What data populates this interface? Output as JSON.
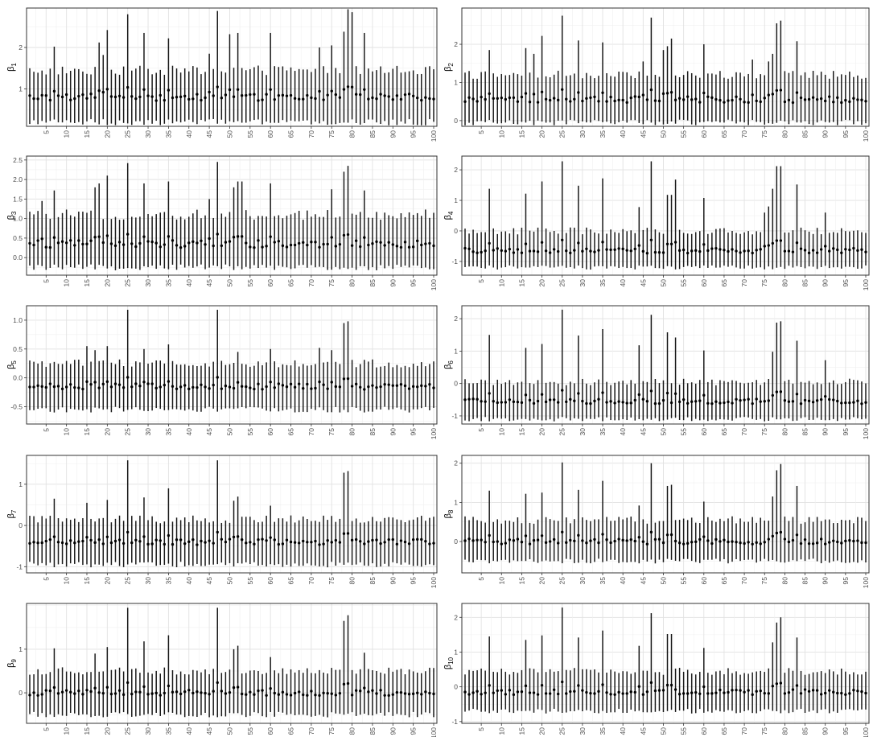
{
  "chart_data": [
    {
      "type": "scatter",
      "ylabel": "β",
      "ylabel_sub": "1",
      "x_ticks": [
        5,
        10,
        15,
        20,
        25,
        30,
        35,
        40,
        45,
        50,
        55,
        60,
        65,
        70,
        75,
        80,
        85,
        90,
        95,
        100
      ],
      "ylim": [
        0.1,
        2.95
      ],
      "y_ticks": [
        1,
        2
      ],
      "grid": true,
      "n_points": 100,
      "baseline": 0.8,
      "lo_offset": 0.6,
      "hi_offset": 0.65,
      "spikes": {
        "7": 2.02,
        "18": 2.12,
        "19": 1.82,
        "20": 2.42,
        "25": 2.8,
        "29": 2.35,
        "35": 2.22,
        "45": 1.85,
        "47": 2.88,
        "50": 2.32,
        "52": 2.35,
        "60": 2.35,
        "72": 2.0,
        "75": 2.05,
        "78": 2.38,
        "79": 2.92,
        "80": 2.85,
        "83": 2.35
      }
    },
    {
      "type": "scatter",
      "ylabel": "β",
      "ylabel_sub": "2",
      "x_ticks": [
        5,
        10,
        15,
        20,
        25,
        30,
        35,
        40,
        45,
        50,
        55,
        60,
        65,
        70,
        75,
        80,
        85,
        90,
        95,
        100
      ],
      "ylim": [
        -0.15,
        2.95
      ],
      "y_ticks": [
        0,
        1,
        2
      ],
      "grid": true,
      "n_points": 100,
      "baseline": 0.55,
      "lo_offset": 0.6,
      "hi_offset": 0.65,
      "spikes": {
        "7": 1.85,
        "16": 1.9,
        "18": 1.75,
        "20": 2.22,
        "25": 2.75,
        "29": 2.1,
        "35": 2.05,
        "45": 1.55,
        "47": 2.7,
        "50": 1.85,
        "51": 1.95,
        "52": 2.15,
        "60": 2.0,
        "72": 1.6,
        "76": 1.55,
        "77": 1.75,
        "78": 2.55,
        "79": 2.62,
        "83": 2.08
      }
    },
    {
      "type": "scatter",
      "ylabel": "β",
      "ylabel_sub": "3",
      "x_ticks": [
        5,
        10,
        15,
        20,
        25,
        30,
        35,
        40,
        45,
        50,
        55,
        60,
        65,
        70,
        75,
        80,
        85,
        90,
        95,
        100
      ],
      "ylim": [
        -0.45,
        2.6
      ],
      "y_ticks": [
        0.0,
        0.5,
        1.0,
        1.5,
        2.0,
        2.5
      ],
      "y_tick_labels": [
        "0.0",
        "0.5",
        "1.0",
        "1.5",
        "2.0",
        "2.5"
      ],
      "grid": true,
      "n_points": 100,
      "baseline": 0.35,
      "lo_offset": 0.6,
      "hi_offset": 0.75,
      "spikes": {
        "4": 1.45,
        "7": 1.72,
        "17": 1.8,
        "18": 1.9,
        "20": 2.1,
        "25": 2.42,
        "29": 1.9,
        "35": 1.95,
        "45": 1.5,
        "47": 2.45,
        "51": 1.8,
        "52": 1.95,
        "53": 1.95,
        "60": 1.9,
        "75": 1.75,
        "78": 2.2,
        "79": 2.35,
        "83": 1.72
      }
    },
    {
      "type": "scatter",
      "ylabel": "β",
      "ylabel_sub": "4",
      "x_ticks": [
        5,
        10,
        15,
        20,
        25,
        30,
        35,
        40,
        45,
        50,
        55,
        60,
        65,
        70,
        75,
        80,
        85,
        90,
        95,
        100
      ],
      "ylim": [
        -1.45,
        2.45
      ],
      "y_ticks": [
        -1,
        0,
        1,
        2
      ],
      "grid": true,
      "n_points": 100,
      "baseline": -0.65,
      "lo_offset": 0.55,
      "hi_offset": 0.65,
      "spikes": {
        "7": 1.38,
        "16": 1.22,
        "20": 1.62,
        "25": 2.28,
        "29": 1.48,
        "35": 1.72,
        "44": 0.78,
        "47": 2.28,
        "51": 1.18,
        "52": 1.18,
        "53": 1.68,
        "60": 1.08,
        "75": 0.6,
        "76": 0.8,
        "77": 1.38,
        "78": 2.12,
        "79": 2.12,
        "83": 1.52,
        "90": 0.6
      }
    },
    {
      "type": "scatter",
      "ylabel": "β",
      "ylabel_sub": "5",
      "x_ticks": [
        5,
        10,
        15,
        20,
        25,
        30,
        35,
        40,
        45,
        50,
        55,
        60,
        65,
        70,
        75,
        80,
        85,
        90,
        95,
        100
      ],
      "ylim": [
        -0.8,
        1.25
      ],
      "y_ticks": [
        -0.5,
        0.0,
        0.5,
        1.0
      ],
      "y_tick_labels": [
        "-0.5",
        "0.0",
        "0.5",
        "1.0"
      ],
      "grid": true,
      "n_points": 100,
      "baseline": -0.15,
      "lo_offset": 0.4,
      "hi_offset": 0.4,
      "spikes": {
        "15": 0.55,
        "17": 0.48,
        "20": 0.55,
        "25": 1.18,
        "29": 0.5,
        "35": 0.58,
        "47": 1.18,
        "52": 0.45,
        "60": 0.5,
        "72": 0.52,
        "75": 0.48,
        "78": 0.95,
        "79": 0.98
      }
    },
    {
      "type": "scatter",
      "ylabel": "β",
      "ylabel_sub": "6",
      "x_ticks": [
        5,
        10,
        15,
        20,
        25,
        30,
        35,
        40,
        45,
        50,
        55,
        60,
        65,
        70,
        75,
        80,
        85,
        90,
        95,
        100
      ],
      "ylim": [
        -1.25,
        2.4
      ],
      "y_ticks": [
        -1,
        0,
        1,
        2
      ],
      "grid": true,
      "n_points": 100,
      "baseline": -0.55,
      "lo_offset": 0.55,
      "hi_offset": 0.6,
      "spikes": {
        "7": 1.5,
        "16": 1.1,
        "20": 1.22,
        "25": 2.28,
        "29": 1.48,
        "35": 1.68,
        "44": 1.18,
        "47": 2.12,
        "51": 1.58,
        "53": 1.42,
        "60": 1.02,
        "77": 0.98,
        "78": 1.88,
        "79": 1.92,
        "83": 1.32,
        "90": 0.72
      }
    },
    {
      "type": "scatter",
      "ylabel": "β",
      "ylabel_sub": "7",
      "x_ticks": [
        5,
        10,
        15,
        20,
        25,
        30,
        35,
        40,
        45,
        50,
        55,
        60,
        65,
        70,
        75,
        80,
        85,
        90,
        95,
        100
      ],
      "ylim": [
        -1.15,
        1.7
      ],
      "y_ticks": [
        -1,
        0,
        1
      ],
      "grid": true,
      "n_points": 100,
      "baseline": -0.4,
      "lo_offset": 0.55,
      "hi_offset": 0.55,
      "spikes": {
        "7": 0.65,
        "15": 0.55,
        "20": 0.62,
        "25": 1.58,
        "29": 0.68,
        "35": 0.9,
        "47": 1.58,
        "51": 0.6,
        "52": 0.7,
        "60": 0.48,
        "78": 1.28,
        "79": 1.32
      }
    },
    {
      "type": "scatter",
      "ylabel": "β",
      "ylabel_sub": "8",
      "x_ticks": [
        5,
        10,
        15,
        20,
        25,
        30,
        35,
        40,
        45,
        50,
        55,
        60,
        65,
        70,
        75,
        80,
        85,
        90,
        95,
        100
      ],
      "ylim": [
        -0.8,
        2.2
      ],
      "y_ticks": [
        0,
        1,
        2
      ],
      "grid": true,
      "n_points": 100,
      "baseline": 0.0,
      "lo_offset": 0.5,
      "hi_offset": 0.55,
      "spikes": {
        "7": 1.3,
        "16": 1.22,
        "20": 1.25,
        "25": 2.02,
        "29": 1.32,
        "35": 1.55,
        "44": 0.92,
        "47": 2.0,
        "51": 1.42,
        "52": 1.45,
        "60": 1.02,
        "77": 1.15,
        "78": 1.82,
        "79": 1.98,
        "83": 1.42
      }
    },
    {
      "type": "scatter",
      "ylabel": "β",
      "ylabel_sub": "9",
      "x_ticks": [
        5,
        10,
        15,
        20,
        25,
        30,
        35,
        40,
        45,
        50,
        55,
        60,
        65,
        70,
        75,
        80,
        85,
        90,
        95,
        100
      ],
      "ylim": [
        -0.7,
        2.05
      ],
      "y_ticks": [
        0,
        1
      ],
      "grid": true,
      "n_points": 100,
      "baseline": 0.0,
      "lo_offset": 0.5,
      "hi_offset": 0.5,
      "spikes": {
        "7": 1.02,
        "17": 0.9,
        "20": 1.05,
        "25": 1.95,
        "29": 1.18,
        "35": 1.32,
        "47": 1.95,
        "51": 1.0,
        "52": 1.08,
        "60": 0.82,
        "78": 1.65,
        "79": 1.78,
        "83": 0.92
      }
    },
    {
      "type": "scatter",
      "ylabel": "β",
      "ylabel_sub": "10",
      "x_ticks": [
        5,
        10,
        15,
        20,
        25,
        30,
        35,
        40,
        45,
        50,
        55,
        60,
        65,
        70,
        75,
        80,
        85,
        90,
        95,
        100
      ],
      "ylim": [
        -1.05,
        2.4
      ],
      "y_ticks": [
        -1,
        0,
        1,
        2
      ],
      "grid": true,
      "n_points": 100,
      "baseline": -0.15,
      "lo_offset": 0.55,
      "hi_offset": 0.6,
      "spikes": {
        "7": 1.45,
        "16": 1.35,
        "20": 1.48,
        "25": 2.28,
        "29": 1.42,
        "35": 1.62,
        "44": 1.18,
        "47": 2.12,
        "51": 1.52,
        "52": 1.52,
        "60": 1.12,
        "77": 1.28,
        "78": 1.85,
        "79": 2.0,
        "83": 1.42
      }
    }
  ]
}
